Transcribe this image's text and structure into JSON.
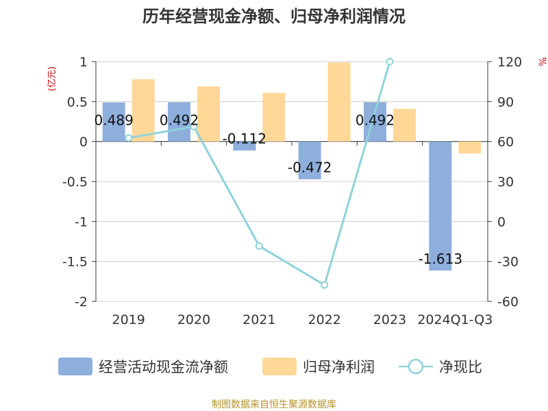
{
  "chart_data": {
    "type": "bar",
    "title": "历年经营现金净额、归母净利润情况",
    "categories": [
      "2019",
      "2020",
      "2021",
      "2022",
      "2023",
      "2024Q1-Q3"
    ],
    "ylabel_left": "(亿元)",
    "ylabel_right": "%",
    "ylim_left": [
      -2,
      1
    ],
    "ylim_right": [
      -60,
      120
    ],
    "yticks_left": [
      "1",
      "0.5",
      "0",
      "-0.5",
      "-1",
      "-1.5",
      "-2"
    ],
    "yticks_right": [
      "120",
      "90",
      "60",
      "30",
      "0",
      "-30",
      "-60"
    ],
    "series": [
      {
        "name": "经营活动现金流净额",
        "type": "bar",
        "axis": "left",
        "color": "#8eaedc",
        "values": [
          0.489,
          0.492,
          -0.112,
          -0.472,
          0.492,
          -1.613
        ],
        "labels": [
          "0.489",
          "0.492",
          "-0.112",
          "-0.472",
          "0.492",
          "-1.613"
        ]
      },
      {
        "name": "归母净利润",
        "type": "bar",
        "axis": "left",
        "color": "#ffd898",
        "values": [
          0.78,
          0.69,
          0.61,
          0.99,
          0.41,
          -0.15
        ]
      },
      {
        "name": "净现比",
        "type": "line",
        "axis": "right",
        "color": "#8ed3d9",
        "values": [
          62.7,
          71.3,
          -18.4,
          -47.7,
          120.0,
          null
        ]
      }
    ],
    "grid": true,
    "legend_position": "bottom"
  },
  "footer": {
    "source": "制图数据来自恒生聚源数据库"
  },
  "colors": {
    "title": "#333333",
    "axis_unit": "#cc0000",
    "source": "#b8902a",
    "grid": "#cccccc"
  }
}
